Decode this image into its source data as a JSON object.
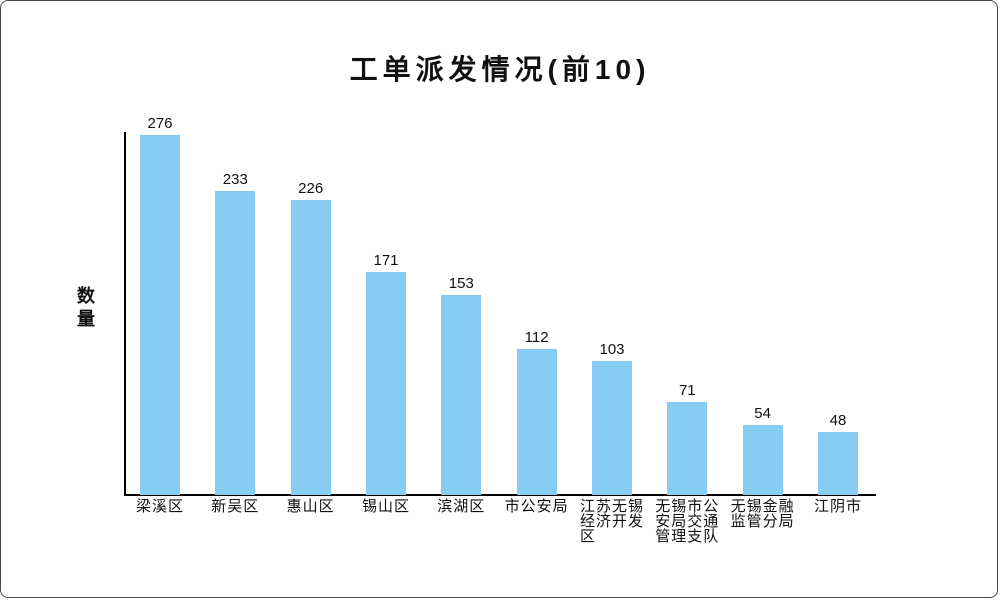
{
  "window": {
    "background": "#ffffff",
    "border_color": "#4a4a4a"
  },
  "chart_data": {
    "type": "bar",
    "title": "工单派发情况(前10)",
    "xlabel": "",
    "ylabel": "数量",
    "categories": [
      "梁溪区",
      "新吴区",
      "惠山区",
      "锡山区",
      "滨湖区",
      "市公安局",
      "江苏无锡经济开发区",
      "无锡市公安局交通管理支队",
      "无锡金融监管分局",
      "江阴市"
    ],
    "categories_display": [
      "梁溪区",
      "新吴区",
      "惠山区",
      "锡山区",
      "滨湖区",
      "市公安局",
      "江苏无锡\n经济开发\n区",
      "无锡市公\n安局交通\n管理支队",
      "无锡金融\n监管分局",
      "江阴市"
    ],
    "values": [
      276,
      233,
      226,
      171,
      153,
      112,
      103,
      71,
      54,
      48
    ],
    "value_labels_shown": true,
    "bar_color": "#87CCF2",
    "axis_color": "#000000",
    "text_color": "#111111",
    "ylim": [
      0,
      276
    ],
    "grid": false,
    "legend": null
  }
}
